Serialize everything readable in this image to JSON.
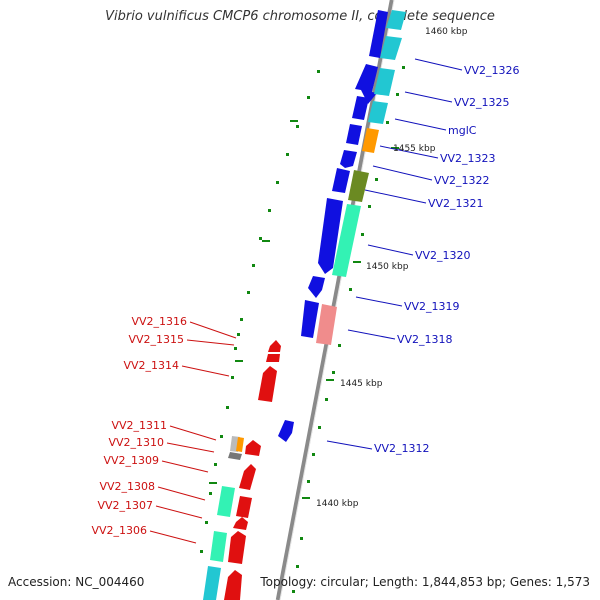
{
  "title": "Vibrio vulnificus CMCP6 chromosome II, complete sequence",
  "footer": {
    "accession": "Accession: NC_004460",
    "topology": "Topology: circular; Length: 1,844,853 bp; Genes: 1,573"
  },
  "colors": {
    "backbone": "#8a8a8a",
    "forward_strand": "#1010e0",
    "reverse_strand": "#e01010",
    "cyan": "#22c7d2",
    "aquamarine": "#33f2b4",
    "orange": "#ff9900",
    "olive": "#6b8a22",
    "pink": "#f08c8c",
    "grey": "#9a9a9a",
    "tick": "#118811",
    "forward_label": "#1111bb",
    "reverse_label": "#cc1111",
    "kbp_label": "#222222"
  },
  "kbp_labels": [
    "1460 kbp",
    "1455 kbp",
    "1450 kbp",
    "1445 kbp",
    "1440 kbp"
  ],
  "forward_labels": [
    "VV2_1326",
    "VV2_1325",
    "mglC",
    "VV2_1323",
    "VV2_1322",
    "VV2_1321",
    "VV2_1320",
    "VV2_1319",
    "VV2_1318",
    "VV2_1312"
  ],
  "reverse_labels": [
    "VV2_1316",
    "VV2_1315",
    "VV2_1314",
    "VV2_1311",
    "VV2_1310",
    "VV2_1309",
    "VV2_1308",
    "VV2_1307",
    "VV2_1306"
  ]
}
